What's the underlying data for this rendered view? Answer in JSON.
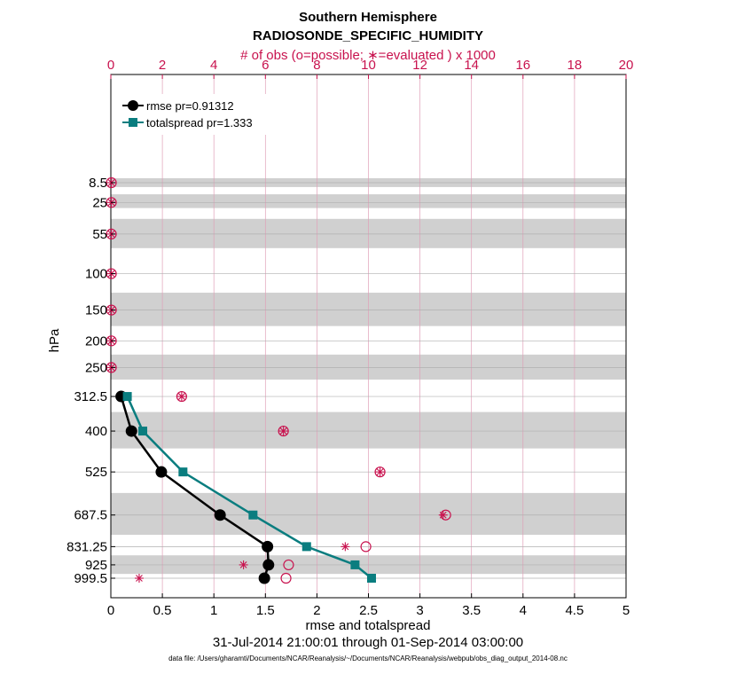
{
  "chart_data": {
    "type": "line",
    "title": "Southern Hemisphere",
    "subtitle": "RADIOSONDE_SPECIFIC_HUMIDITY",
    "top_axis_label": "# of obs (o=possible; ∗=evaluated ) x 1000",
    "xlabel": "rmse and totalspread",
    "ylabel": "hPa",
    "date_range": "31-Jul-2014 21:00:01 through 01-Sep-2014 03:00:00",
    "footer": "data file: /Users/gharamti/Documents/NCAR/Reanalysis/~/Documents/NCAR/Reanalysis/webpub/obs_diag_output_2014-08.nc",
    "xlim": [
      0,
      5
    ],
    "x_ticks": [
      0,
      0.5,
      1,
      1.5,
      2,
      2.5,
      3,
      3.5,
      4,
      4.5,
      5
    ],
    "x_tick_labels": [
      "0",
      "0.5",
      "1",
      "1.5",
      "2",
      "2.5",
      "3",
      "3.5",
      "4",
      "4.5",
      "5"
    ],
    "top_xlim": [
      0,
      20
    ],
    "top_ticks": [
      0,
      2,
      4,
      6,
      8,
      10,
      12,
      14,
      16,
      18,
      20
    ],
    "top_tick_labels": [
      "0",
      "2",
      "4",
      "6",
      "8",
      "10",
      "12",
      "14",
      "16",
      "18",
      "20"
    ],
    "levels": [
      "8.5",
      "25",
      "55",
      "100",
      "150",
      "200",
      "250",
      "312.5",
      "400",
      "525",
      "687.5",
      "831.25",
      "925",
      "999.5"
    ],
    "level_values": [
      8.5,
      25,
      55,
      100,
      150,
      200,
      250,
      312.5,
      400,
      525,
      687.5,
      831.25,
      925,
      999.5
    ],
    "shaded_bands_hpa": [
      [
        5,
        12
      ],
      [
        18,
        30
      ],
      [
        40,
        70
      ],
      [
        125,
        175
      ],
      [
        225,
        275
      ],
      [
        350,
        450
      ],
      [
        600,
        775
      ],
      [
        875,
        975
      ]
    ],
    "series": [
      {
        "name": "rmse pr=0.91312",
        "color": "#000000",
        "marker": "circle",
        "levels": [
          312.5,
          400,
          525,
          687.5,
          831.25,
          925,
          999.5
        ],
        "values": [
          0.1,
          0.2,
          0.49,
          1.06,
          1.52,
          1.53,
          1.49
        ]
      },
      {
        "name": "totalspread pr=1.333",
        "color": "#0a7d7f",
        "marker": "square",
        "levels": [
          312.5,
          400,
          525,
          687.5,
          831.25,
          925,
          999.5
        ],
        "values": [
          0.16,
          0.31,
          0.7,
          1.38,
          1.9,
          2.37,
          2.53
        ]
      }
    ],
    "obs_possible": {
      "color": "#c8124e",
      "levels": [
        8.5,
        25,
        55,
        100,
        150,
        200,
        250,
        312.5,
        400,
        525,
        687.5,
        831.25,
        925,
        999.5
      ],
      "counts_thousands": [
        0.02,
        0.02,
        0.02,
        0.02,
        0.02,
        0.02,
        0.02,
        2.75,
        6.7,
        10.45,
        13.0,
        9.9,
        6.9,
        6.8
      ]
    },
    "obs_evaluated": {
      "color": "#c8124e",
      "levels": [
        8.5,
        25,
        55,
        100,
        150,
        200,
        250,
        312.5,
        400,
        525,
        687.5,
        831.25,
        925,
        999.5
      ],
      "counts_thousands": [
        0.02,
        0.02,
        0.02,
        0.02,
        0.02,
        0.02,
        0.02,
        2.75,
        6.7,
        10.45,
        12.9,
        9.1,
        5.15,
        1.1
      ]
    }
  }
}
